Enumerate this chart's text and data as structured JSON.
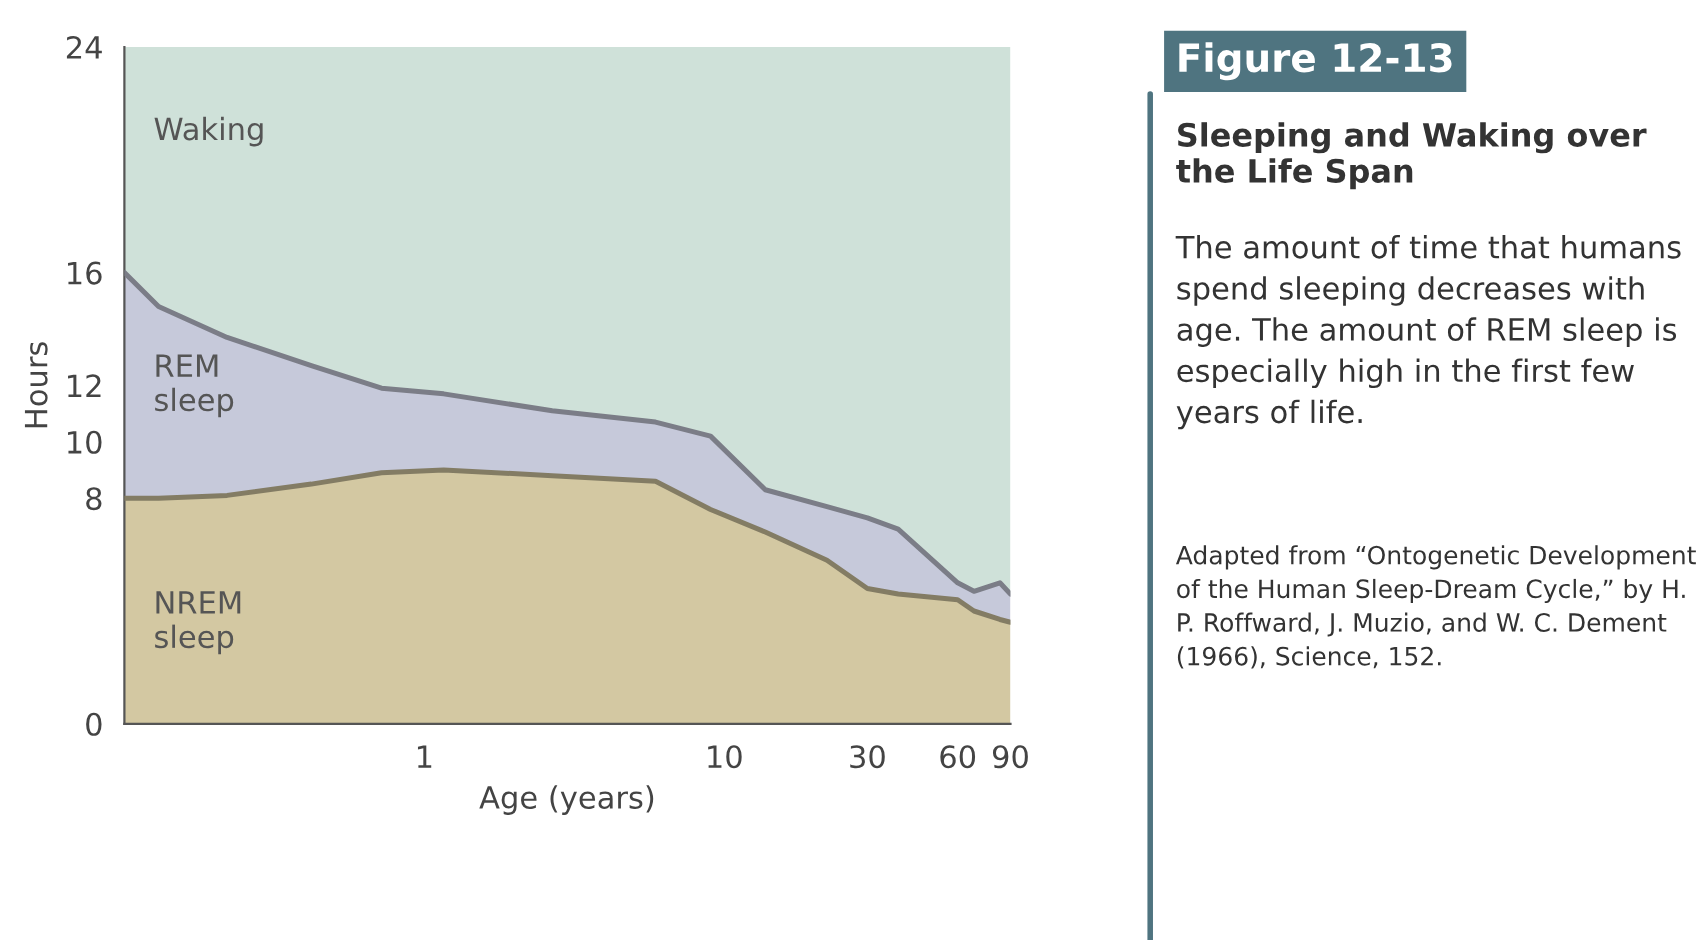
{
  "chart_data": {
    "type": "area",
    "stacked": true,
    "title": "Figure 12-13",
    "subtitle": "Sleeping and Waking over the Life Span",
    "annotations": [
      "The amount of time that humans spend sleeping decreases with age. The amount of REM sleep is especially high in the first few years of life.",
      "Adapted from “Ontogenetic Development of the Human Sleep-Dream Cycle,” by H. P. Roffward, J. Muzio, and W. C. Dement (1966), Science, 152."
    ],
    "xlabel": "Age (years)",
    "ylabel": "Hours",
    "log": "x",
    "x": [
      0.1,
      0.13,
      0.22,
      0.42,
      0.72,
      1.16,
      2.67,
      5.9,
      9,
      13.7,
      22,
      30,
      38,
      60,
      68,
      83,
      90
    ],
    "xlim": [
      0.1,
      90
    ],
    "xticks": [
      1,
      10,
      30,
      60,
      90
    ],
    "ylim": [
      0,
      24
    ],
    "yticks": [
      0,
      8,
      10,
      12,
      16,
      24
    ],
    "grid": false,
    "legend": false,
    "series": [
      {
        "name": "NREM sleep",
        "color": "#d3c8a2",
        "values": [
          8.0,
          8.0,
          8.1,
          8.5,
          8.9,
          9.0,
          8.8,
          8.6,
          7.6,
          6.8,
          5.8,
          4.8,
          4.6,
          4.4,
          4.0,
          3.7,
          3.6
        ]
      },
      {
        "name": "REM sleep",
        "color": "#c6c9da",
        "values": [
          8.0,
          6.8,
          5.6,
          4.2,
          3.0,
          2.7,
          2.3,
          2.1,
          2.6,
          1.5,
          1.9,
          2.5,
          2.3,
          0.6,
          0.7,
          1.3,
          1.0
        ]
      },
      {
        "name": "Waking",
        "color": "#cfe1d9",
        "values": [
          8.0,
          9.2,
          10.3,
          11.3,
          12.1,
          12.3,
          12.9,
          13.3,
          13.8,
          15.7,
          16.3,
          16.7,
          17.1,
          19.0,
          19.3,
          19.0,
          19.4
        ]
      }
    ]
  }
}
